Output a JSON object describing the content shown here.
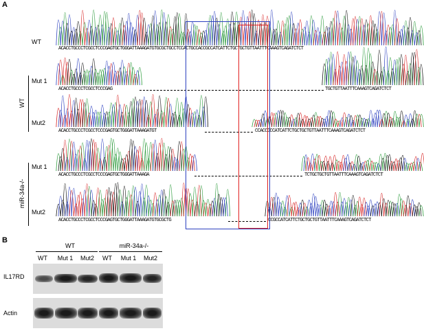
{
  "panel_a": {
    "letter": "A",
    "groups": {
      "wt": "WT",
      "mir": "miR-34a-/-"
    },
    "tracks": [
      {
        "label": "WT",
        "seq": "ACACCTGCCCTCGCCTCCCGAGTGCTGGGATTAAAGATGTGCGCTGCCTCCACTGCCACCGCCATCATTCTGCTGCTGTTAATTTCAAAGTCAGATCTCT"
      },
      {
        "label": "Mut 1",
        "seq_left": "ACACCTGCCCTCGCCTCCCGAG",
        "seq_right": "TGCTGTTAATTTCAAAGTCAGATCTCT"
      },
      {
        "label": "Mut2",
        "seq_left": "ACACCTGCCCTCGCCTCCCGAGTGCTGGGATTAAAGATGT",
        "seq_right": "CCACCGCCATCATTCTGCTGCTGTTAATTTCAAAGTCAGATCTCT"
      },
      {
        "label": "Mut 1",
        "seq_left": "ACACCTGCCCTCGCCTCCCGAGTGCTGGGATTAAAGA",
        "seq_right": "TCTGCTGCTGTTAATTTCAAAGTCAGATCTCT"
      },
      {
        "label": "Mut2",
        "seq_left": "ACACCTGCCCTCGCCTCCCGAGTGCTGGGATTAAAGATGTGCGCTG",
        "seq_right": "CCGCCATCATTCTGCTGCTGTTAATTTCAAAGTCAGATCTCT"
      }
    ],
    "colors": {
      "a": "#2a9a3a",
      "c": "#2b3fbf",
      "g": "#111111",
      "t": "#d62020",
      "blue_box": "#2b3fbf",
      "red_box": "#e02020"
    }
  },
  "panel_b": {
    "letter": "B",
    "groups": {
      "wt": "WT",
      "mir": "miR-34a-/-"
    },
    "lanes": [
      "WT",
      "Mut 1",
      "Mut2",
      "WT",
      "Mut 1",
      "Mut2"
    ],
    "blots": {
      "il17rd": "IL17RD",
      "actin": "Actin"
    }
  }
}
